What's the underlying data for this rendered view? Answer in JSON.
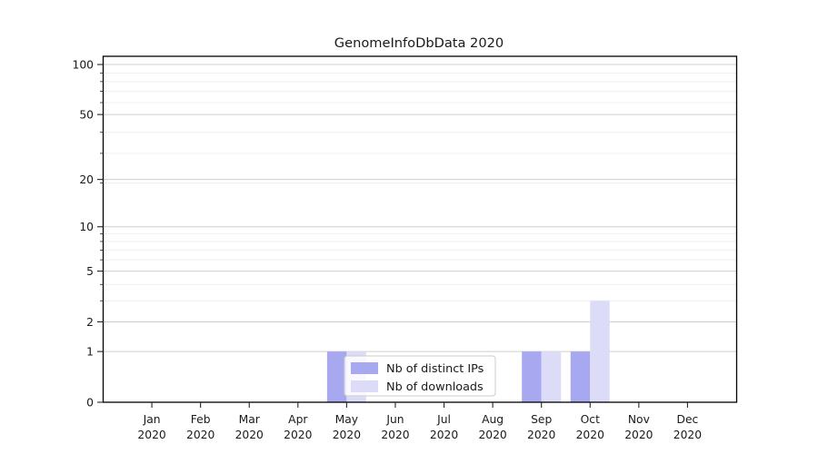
{
  "chart_data": {
    "type": "bar",
    "title": "GenomeInfoDbData 2020",
    "categories": [
      "Jan 2020",
      "Feb 2020",
      "Mar 2020",
      "Apr 2020",
      "May 2020",
      "Jun 2020",
      "Jul 2020",
      "Aug 2020",
      "Sep 2020",
      "Oct 2020",
      "Nov 2020",
      "Dec 2020"
    ],
    "series": [
      {
        "name": "Nb of distinct IPs",
        "color": "#a8a8f0",
        "values": [
          0,
          0,
          0,
          0,
          1,
          0,
          0,
          0,
          1,
          1,
          0,
          0
        ]
      },
      {
        "name": "Nb of downloads",
        "color": "#dcdcf8",
        "values": [
          0,
          0,
          0,
          0,
          1,
          0,
          0,
          0,
          1,
          3,
          0,
          0
        ]
      }
    ],
    "xlabel": "",
    "ylabel": "",
    "yscale": "log1p",
    "yticks": [
      0,
      1,
      2,
      5,
      10,
      20,
      50,
      100
    ],
    "minor_grid_values": [
      3,
      4,
      6,
      7,
      8,
      9,
      19,
      29,
      39,
      59,
      69,
      79,
      89
    ],
    "ylim": [
      0,
      112
    ],
    "grid": true,
    "legend_position": "lower center"
  }
}
